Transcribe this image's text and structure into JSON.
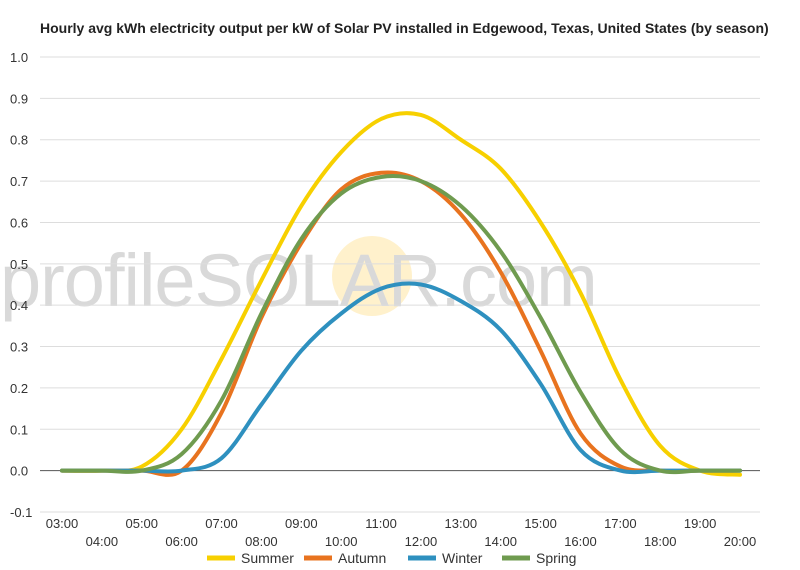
{
  "chart_data": {
    "type": "line",
    "title": "Hourly avg kWh electricity output per kW of Solar PV installed in Edgewood, Texas, United States (by season)",
    "watermark": "profileSOLAR.com",
    "xlabel": "",
    "ylabel": "",
    "ylim": [
      -0.1,
      1.0
    ],
    "yticks": [
      "1.0",
      "0.9",
      "0.8",
      "0.7",
      "0.6",
      "0.5",
      "0.4",
      "0.3",
      "0.2",
      "0.1",
      "0.0",
      "-0.1"
    ],
    "ytick_values": [
      1.0,
      0.9,
      0.8,
      0.7,
      0.6,
      0.5,
      0.4,
      0.3,
      0.2,
      0.1,
      0.0,
      -0.1
    ],
    "x": [
      "03:00",
      "04:00",
      "05:00",
      "06:00",
      "07:00",
      "08:00",
      "09:00",
      "10:00",
      "11:00",
      "12:00",
      "13:00",
      "14:00",
      "15:00",
      "16:00",
      "17:00",
      "18:00",
      "19:00",
      "20:00"
    ],
    "grid": true,
    "legend_position": "bottom",
    "series": [
      {
        "name": "Summer",
        "color": "#f7d000",
        "values": [
          0.0,
          0.0,
          0.01,
          0.1,
          0.27,
          0.46,
          0.64,
          0.77,
          0.85,
          0.86,
          0.8,
          0.73,
          0.6,
          0.43,
          0.22,
          0.06,
          0.0,
          -0.01
        ]
      },
      {
        "name": "Autumn",
        "color": "#e8731f",
        "values": [
          0.0,
          0.0,
          0.0,
          0.0,
          0.14,
          0.37,
          0.55,
          0.68,
          0.72,
          0.7,
          0.62,
          0.48,
          0.29,
          0.09,
          0.01,
          0.0,
          0.0,
          0.0
        ]
      },
      {
        "name": "Winter",
        "color": "#2e90bf",
        "values": [
          0.0,
          0.0,
          0.0,
          0.0,
          0.03,
          0.16,
          0.29,
          0.38,
          0.44,
          0.45,
          0.41,
          0.34,
          0.21,
          0.05,
          0.0,
          0.0,
          0.0,
          0.0
        ]
      },
      {
        "name": "Spring",
        "color": "#6f9b4f",
        "values": [
          0.0,
          0.0,
          0.0,
          0.04,
          0.17,
          0.38,
          0.56,
          0.67,
          0.71,
          0.7,
          0.64,
          0.53,
          0.37,
          0.19,
          0.05,
          0.0,
          0.0,
          0.0
        ]
      }
    ]
  }
}
